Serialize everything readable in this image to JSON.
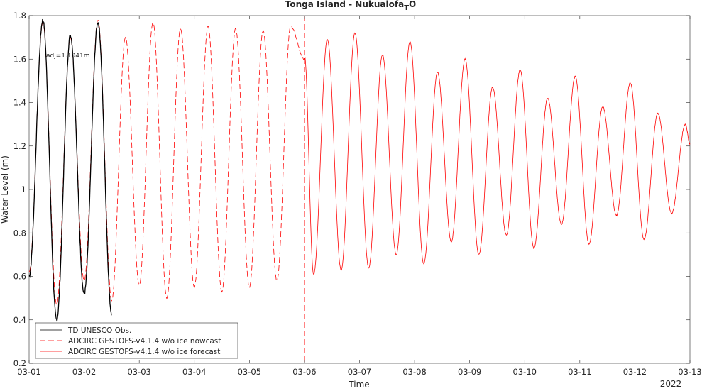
{
  "chart_data": {
    "type": "line",
    "title": "Tonga Island - Nukualofa",
    "title_subscript": "T",
    "title_suffix": "O",
    "xlabel": "Time",
    "ylabel": "Water Level (m)",
    "year_label": "2022",
    "annotation": "adj=1.1041m",
    "xlim": [
      "2022-03-01T00:00",
      "2022-03-13T00:00"
    ],
    "ylim": [
      0.2,
      1.8
    ],
    "xticks": [
      "03-01",
      "03-02",
      "03-03",
      "03-04",
      "03-05",
      "03-06",
      "03-07",
      "03-08",
      "03-09",
      "03-10",
      "03-11",
      "03-12",
      "03-13"
    ],
    "yticks": [
      "0.2",
      "0.4",
      "0.6",
      "0.8",
      "1",
      "1.2",
      "1.4",
      "1.6",
      "1.8"
    ],
    "grid": false,
    "legend_position": "bottom-left",
    "nowcast_forecast_boundary": "2022-03-06T00:00",
    "series": [
      {
        "name": "TD UNESCO Obs.",
        "color": "#000000",
        "style": "solid",
        "time_range": [
          "2022-03-01T00:00",
          "2022-03-02T12:00"
        ],
        "extrema": [
          {
            "t": "2022-03-01T00:00",
            "v": 0.6
          },
          {
            "t": "2022-03-01T06:00",
            "v": 1.78
          },
          {
            "t": "2022-03-01T12:00",
            "v": 0.4
          },
          {
            "t": "2022-03-01T18:00",
            "v": 1.71
          },
          {
            "t": "2022-03-02T00:00",
            "v": 0.52
          },
          {
            "t": "2022-03-02T06:00",
            "v": 1.77
          },
          {
            "t": "2022-03-02T12:00",
            "v": 0.43
          }
        ]
      },
      {
        "name": "ADCIRC GESTOFS-v4.1.4 w/o ice nowcast",
        "color": "#ff0000",
        "style": "dashed",
        "time_range": [
          "2022-03-01T00:00",
          "2022-03-06T00:00"
        ],
        "extrema": [
          {
            "t": "2022-03-01T00:00",
            "v": 0.62
          },
          {
            "t": "2022-03-01T06:00",
            "v": 1.77
          },
          {
            "t": "2022-03-01T12:00",
            "v": 0.47
          },
          {
            "t": "2022-03-01T18:00",
            "v": 1.7
          },
          {
            "t": "2022-03-02T00:00",
            "v": 0.58
          },
          {
            "t": "2022-03-02T06:00",
            "v": 1.78
          },
          {
            "t": "2022-03-02T12:00",
            "v": 0.49
          },
          {
            "t": "2022-03-02T18:00",
            "v": 1.7
          },
          {
            "t": "2022-03-03T00:00",
            "v": 0.56
          },
          {
            "t": "2022-03-03T06:00",
            "v": 1.77
          },
          {
            "t": "2022-03-03T12:00",
            "v": 0.5
          },
          {
            "t": "2022-03-03T18:00",
            "v": 1.74
          },
          {
            "t": "2022-03-04T00:00",
            "v": 0.55
          },
          {
            "t": "2022-03-04T06:00",
            "v": 1.75
          },
          {
            "t": "2022-03-04T12:00",
            "v": 0.53
          },
          {
            "t": "2022-03-04T18:00",
            "v": 1.74
          },
          {
            "t": "2022-03-05T00:00",
            "v": 0.55
          },
          {
            "t": "2022-03-05T06:00",
            "v": 1.73
          },
          {
            "t": "2022-03-05T12:00",
            "v": 0.58
          },
          {
            "t": "2022-03-05T18:00",
            "v": 1.75
          },
          {
            "t": "2022-03-06T00:00",
            "v": 1.6
          }
        ]
      },
      {
        "name": "ADCIRC GESTOFS-v4.1.4 w/o ice forecast",
        "color": "#ff0000",
        "style": "solid",
        "time_range": [
          "2022-03-06T00:00",
          "2022-03-13T00:00"
        ],
        "extrema": [
          {
            "t": "2022-03-06T00:00",
            "v": 1.62
          },
          {
            "t": "2022-03-06T04:00",
            "v": 0.61
          },
          {
            "t": "2022-03-06T10:00",
            "v": 1.69
          },
          {
            "t": "2022-03-06T16:00",
            "v": 0.63
          },
          {
            "t": "2022-03-06T22:00",
            "v": 1.72
          },
          {
            "t": "2022-03-07T04:00",
            "v": 0.64
          },
          {
            "t": "2022-03-07T10:00",
            "v": 1.62
          },
          {
            "t": "2022-03-07T16:00",
            "v": 0.7
          },
          {
            "t": "2022-03-07T22:00",
            "v": 1.68
          },
          {
            "t": "2022-03-08T04:00",
            "v": 0.66
          },
          {
            "t": "2022-03-08T10:00",
            "v": 1.54
          },
          {
            "t": "2022-03-08T16:00",
            "v": 0.76
          },
          {
            "t": "2022-03-08T22:00",
            "v": 1.6
          },
          {
            "t": "2022-03-09T04:00",
            "v": 0.7
          },
          {
            "t": "2022-03-09T10:00",
            "v": 1.47
          },
          {
            "t": "2022-03-09T16:00",
            "v": 0.79
          },
          {
            "t": "2022-03-09T22:00",
            "v": 1.55
          },
          {
            "t": "2022-03-10T04:00",
            "v": 0.73
          },
          {
            "t": "2022-03-10T10:00",
            "v": 1.42
          },
          {
            "t": "2022-03-10T16:00",
            "v": 0.84
          },
          {
            "t": "2022-03-10T22:00",
            "v": 1.52
          },
          {
            "t": "2022-03-11T04:00",
            "v": 0.75
          },
          {
            "t": "2022-03-11T10:00",
            "v": 1.38
          },
          {
            "t": "2022-03-11T16:00",
            "v": 0.88
          },
          {
            "t": "2022-03-11T22:00",
            "v": 1.49
          },
          {
            "t": "2022-03-12T04:00",
            "v": 0.77
          },
          {
            "t": "2022-03-12T10:00",
            "v": 1.35
          },
          {
            "t": "2022-03-12T16:00",
            "v": 0.89
          },
          {
            "t": "2022-03-12T22:00",
            "v": 1.3
          },
          {
            "t": "2022-03-13T00:00",
            "v": 1.21
          }
        ]
      }
    ]
  }
}
